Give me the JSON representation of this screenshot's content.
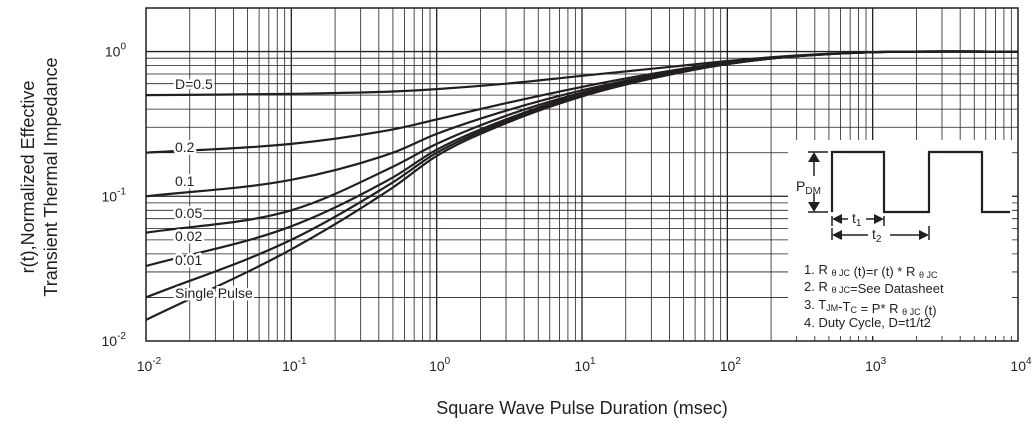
{
  "chart_data": {
    "type": "line",
    "title": "",
    "xlabel": "Square Wave Pulse Duration (msec)",
    "ylabel_lines": [
      "r(t),Normalized Effective",
      "Transient Thermal Impedance"
    ],
    "x_scale": "log",
    "y_scale": "log",
    "xlim": [
      0.01,
      10000
    ],
    "ylim": [
      0.01,
      2
    ],
    "grid": true,
    "x_ticks": [
      {
        "value": 0.01,
        "base": "10",
        "exp": "-2"
      },
      {
        "value": 0.1,
        "base": "10",
        "exp": "-1"
      },
      {
        "value": 1,
        "base": "10",
        "exp": "0"
      },
      {
        "value": 10,
        "base": "10",
        "exp": "1"
      },
      {
        "value": 100,
        "base": "10",
        "exp": "2"
      },
      {
        "value": 1000,
        "base": "10",
        "exp": "3"
      },
      {
        "value": 10000,
        "base": "10",
        "exp": "4"
      }
    ],
    "y_ticks": [
      {
        "value": 0.01,
        "base": "10",
        "exp": "-2"
      },
      {
        "value": 0.1,
        "base": "10",
        "exp": "-1"
      },
      {
        "value": 1,
        "base": "10",
        "exp": "0"
      }
    ],
    "series": [
      {
        "name": "D=0.5",
        "x": [
          0.01,
          0.1,
          0.5,
          1,
          3,
          10,
          30,
          100,
          300,
          1000,
          10000
        ],
        "y": [
          0.5,
          0.51,
          0.53,
          0.55,
          0.6,
          0.68,
          0.76,
          0.86,
          0.94,
          0.99,
          1.0
        ]
      },
      {
        "name": "0.2",
        "x": [
          0.01,
          0.1,
          0.5,
          1,
          3,
          10,
          30,
          100,
          300,
          1000,
          10000
        ],
        "y": [
          0.2,
          0.23,
          0.29,
          0.34,
          0.44,
          0.57,
          0.7,
          0.84,
          0.93,
          0.99,
          1.0
        ]
      },
      {
        "name": "0.1",
        "x": [
          0.01,
          0.1,
          0.5,
          1,
          3,
          10,
          30,
          100,
          300,
          1000,
          10000
        ],
        "y": [
          0.1,
          0.13,
          0.2,
          0.27,
          0.39,
          0.54,
          0.68,
          0.83,
          0.93,
          0.99,
          1.0
        ]
      },
      {
        "name": "0.05",
        "x": [
          0.01,
          0.1,
          0.5,
          1,
          3,
          10,
          30,
          100,
          300,
          1000,
          10000
        ],
        "y": [
          0.056,
          0.08,
          0.16,
          0.23,
          0.36,
          0.52,
          0.67,
          0.83,
          0.93,
          0.99,
          1.0
        ]
      },
      {
        "name": "0.02",
        "x": [
          0.01,
          0.1,
          0.5,
          1,
          3,
          10,
          30,
          100,
          300,
          1000,
          10000
        ],
        "y": [
          0.033,
          0.062,
          0.135,
          0.21,
          0.34,
          0.51,
          0.66,
          0.82,
          0.93,
          0.99,
          1.0
        ]
      },
      {
        "name": "0.01",
        "x": [
          0.01,
          0.1,
          0.5,
          1,
          3,
          10,
          30,
          100,
          300,
          1000,
          10000
        ],
        "y": [
          0.02,
          0.05,
          0.125,
          0.2,
          0.33,
          0.5,
          0.66,
          0.82,
          0.93,
          0.99,
          1.0
        ]
      },
      {
        "name": "Single Pulse",
        "x": [
          0.01,
          0.1,
          0.5,
          1,
          3,
          10,
          30,
          100,
          300,
          1000,
          10000
        ],
        "y": [
          0.014,
          0.043,
          0.115,
          0.19,
          0.32,
          0.49,
          0.65,
          0.82,
          0.93,
          0.99,
          1.0
        ]
      }
    ],
    "inset": {
      "pdm_main": "P",
      "pdm_sub": "DM",
      "t1_main": "t",
      "t1_sub": "1",
      "t2_main": "t",
      "t2_sub": "2",
      "notes": [
        [
          {
            "t": "1. R "
          },
          {
            "t": "θ JC",
            "sub": true
          },
          {
            "t": " (t)=r (t) * R "
          },
          {
            "t": "θ JC",
            "sub": true
          }
        ],
        [
          {
            "t": "2. R "
          },
          {
            "t": "θ JC",
            "sub": true
          },
          {
            "t": "=See Datasheet"
          }
        ],
        [
          {
            "t": "3. T"
          },
          {
            "t": "JM",
            "sub": true
          },
          {
            "t": "-T"
          },
          {
            "t": "C",
            "sub": true
          },
          {
            "t": " = P* R "
          },
          {
            "t": "θ JC",
            "sub": true
          },
          {
            "t": " (t)"
          }
        ],
        [
          {
            "t": "4. Duty Cycle, D=t1/t2"
          }
        ]
      ]
    }
  }
}
